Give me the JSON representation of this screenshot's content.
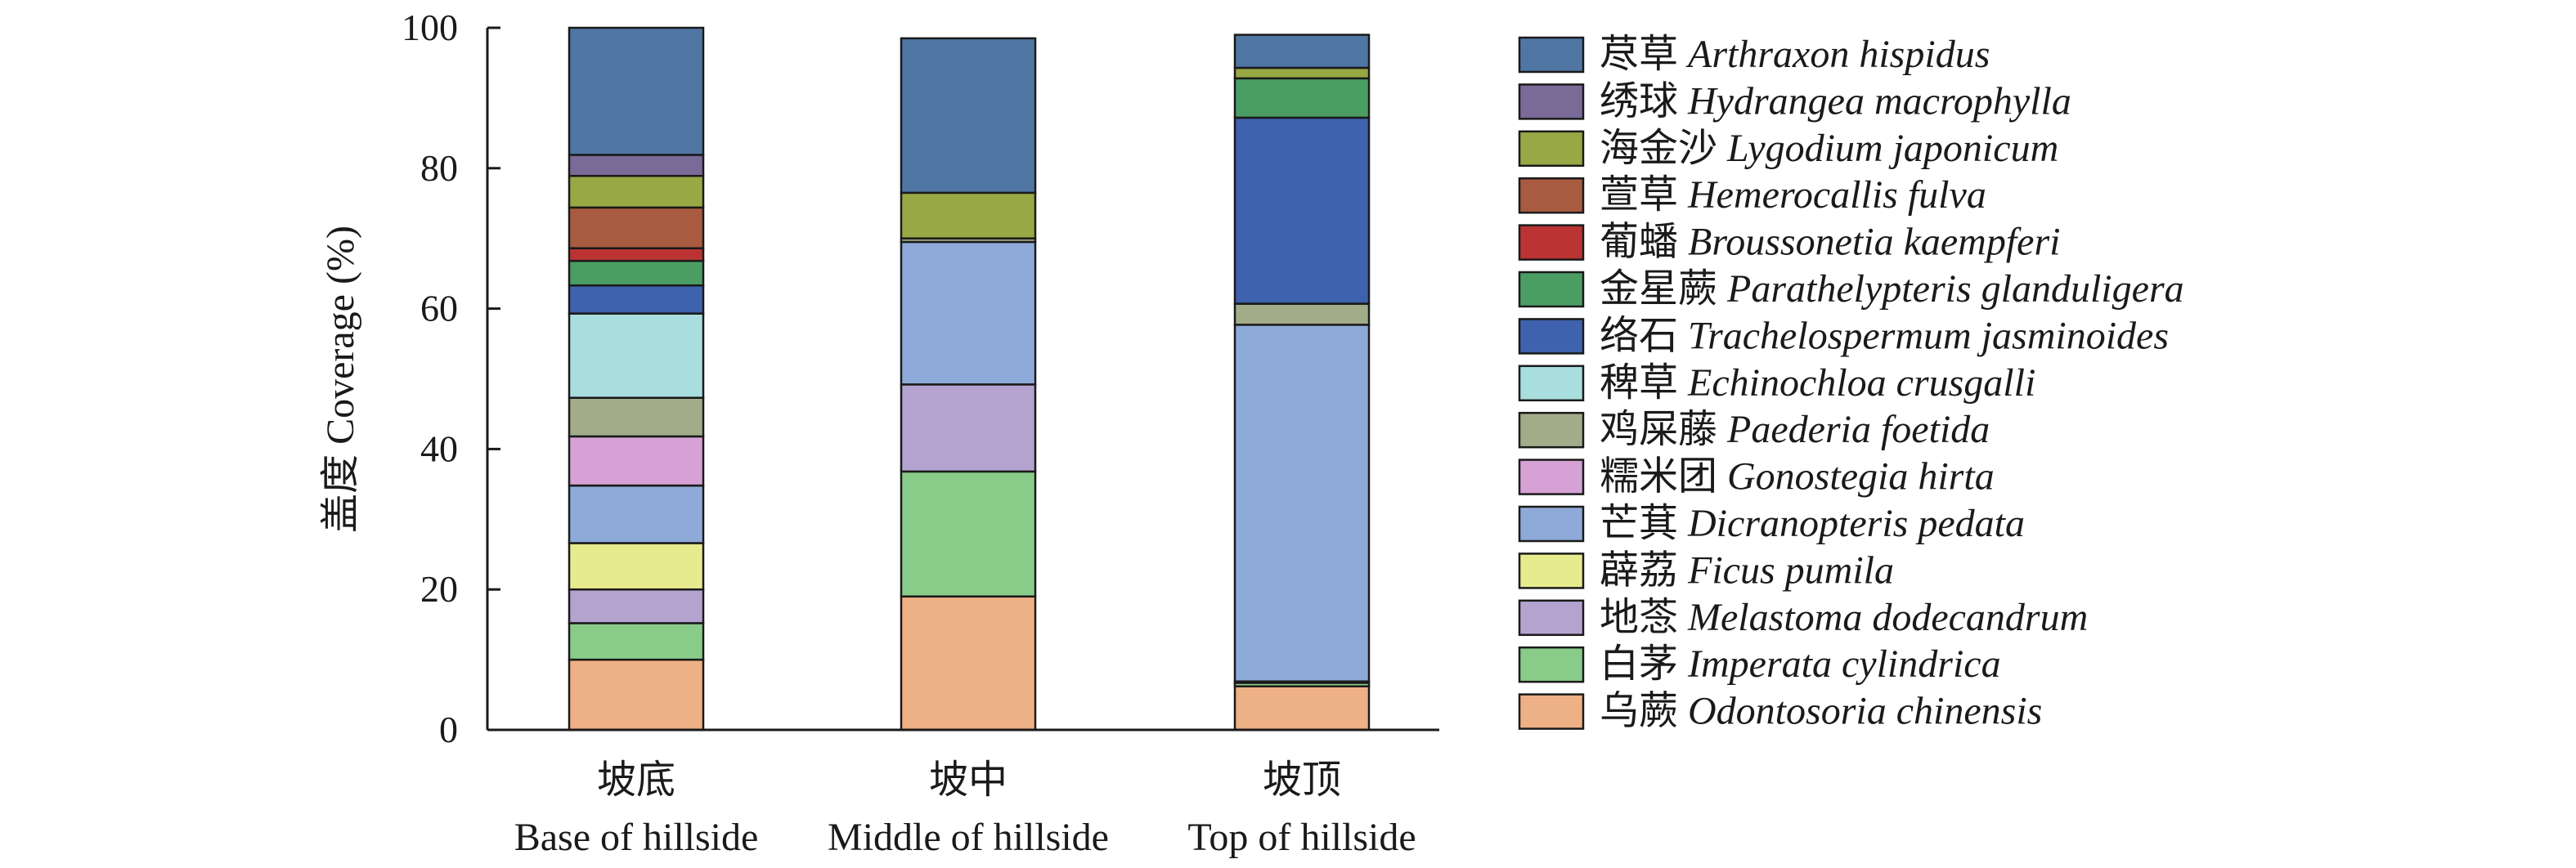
{
  "chart_data": {
    "type": "bar",
    "stacked": true,
    "title": "",
    "ylabel": "盖度 Coverage (%)",
    "xlabel": "",
    "ylim": [
      0,
      100
    ],
    "yticks": [
      "0",
      "20",
      "40",
      "60",
      "80",
      "100"
    ],
    "grid": false,
    "legend_position": "right",
    "categories": [
      {
        "zh": "坡底",
        "en": "Base of hillside"
      },
      {
        "zh": "坡中",
        "en": "Middle of hillside"
      },
      {
        "zh": "坡顶",
        "en": "Top of hillside"
      }
    ],
    "series": [
      {
        "zh": "乌蕨",
        "latin": "Odontosoria chinensis",
        "color": "#eeb085",
        "values": [
          10.0,
          19.0,
          6.2
        ]
      },
      {
        "zh": "白茅",
        "latin": "Imperata cylindrica",
        "color": "#89cc8a",
        "values": [
          5.2,
          17.8,
          0.5
        ]
      },
      {
        "zh": "地菍",
        "latin": "Melastoma dodecandrum",
        "color": "#b4a2cf",
        "values": [
          4.8,
          12.4,
          0.2
        ]
      },
      {
        "zh": "薜荔",
        "latin": "Ficus pumila",
        "color": "#e8ea8e",
        "values": [
          6.6,
          0.0,
          0.0
        ]
      },
      {
        "zh": "芒萁",
        "latin": "Dicranopteris pedata",
        "color": "#8eaad8",
        "values": [
          8.2,
          20.3,
          50.8
        ]
      },
      {
        "zh": "糯米团",
        "latin": "Gonostegia hirta",
        "color": "#d6a1d4",
        "values": [
          7.0,
          0.0,
          0.0
        ]
      },
      {
        "zh": "鸡屎藤",
        "latin": "Paederia foetida",
        "color": "#a3ac89",
        "values": [
          5.5,
          0.5,
          3.0
        ]
      },
      {
        "zh": "稗草",
        "latin": "Echinochloa crusgalli",
        "color": "#a8dedd",
        "values": [
          12.0,
          0.0,
          0.0
        ]
      },
      {
        "zh": "络石",
        "latin": "Trachelospermum jasminoides",
        "color": "#3e62ad",
        "values": [
          4.0,
          0.0,
          26.5
        ]
      },
      {
        "zh": "金星蕨",
        "latin": "Parathelypteris glanduligera",
        "color": "#4a9e63",
        "values": [
          3.5,
          0.0,
          5.6
        ]
      },
      {
        "zh": "葡蟠",
        "latin": "Broussonetia kaempferi",
        "color": "#bc3333",
        "values": [
          1.8,
          0.0,
          0.0
        ]
      },
      {
        "zh": "萱草",
        "latin": "Hemerocallis fulva",
        "color": "#a85b40",
        "values": [
          5.8,
          0.0,
          0.0
        ]
      },
      {
        "zh": "海金沙",
        "latin": "Lygodium japonicum",
        "color": "#97a844",
        "values": [
          4.5,
          6.5,
          1.5
        ]
      },
      {
        "zh": "绣球",
        "latin": "Hydrangea macrophylla",
        "color": "#7a6a98",
        "values": [
          3.0,
          0.0,
          0.0
        ]
      },
      {
        "zh": "荩草",
        "latin": "Arthraxon hispidus",
        "color": "#5076a4",
        "values": [
          18.1,
          22.0,
          4.7
        ]
      }
    ]
  }
}
